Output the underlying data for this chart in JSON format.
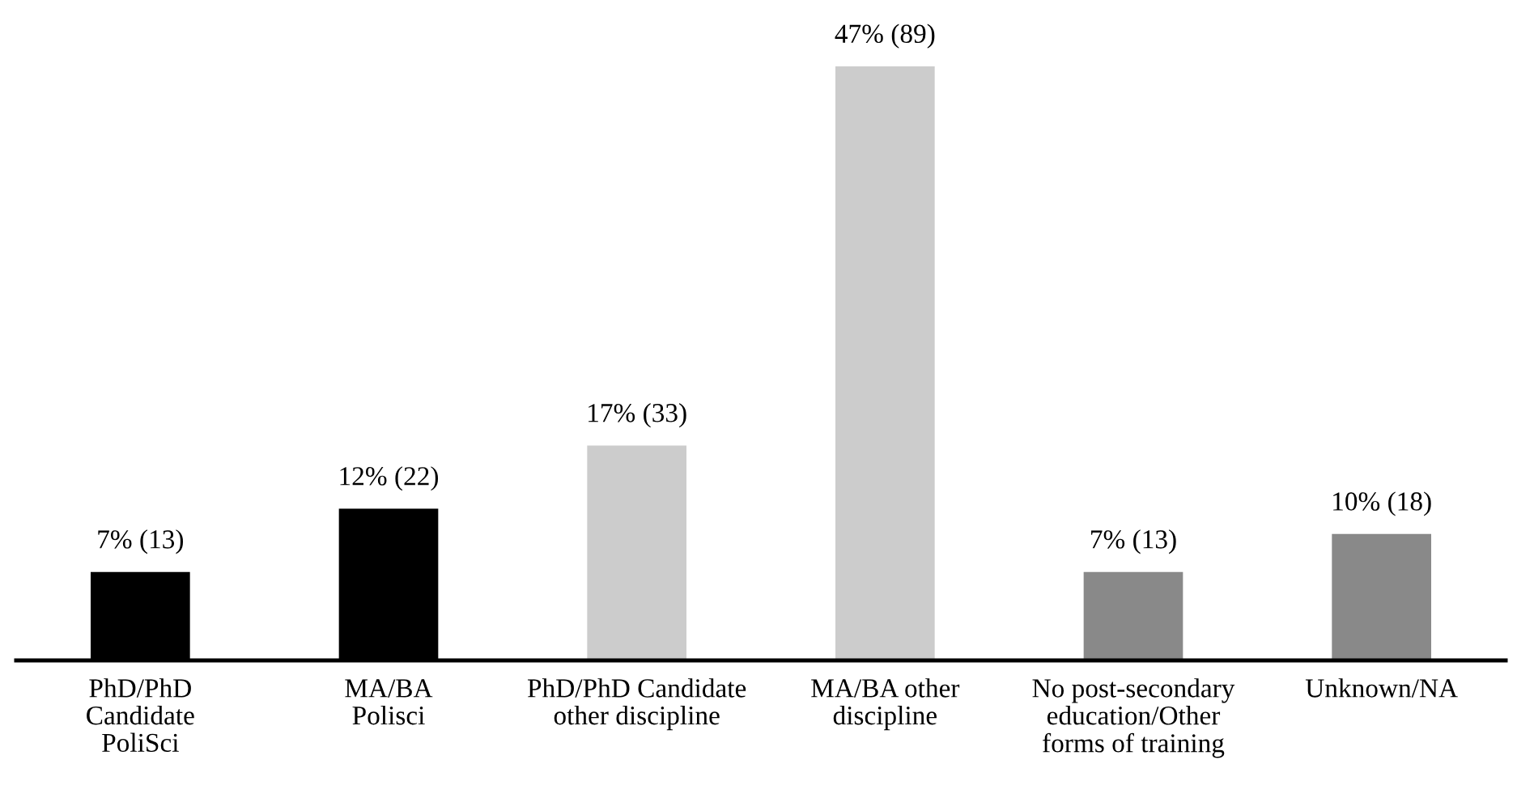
{
  "chart_data": {
    "type": "bar",
    "categories": [
      "PhD/PhD\nCandidate\nPoliSci",
      "MA/BA\nPolisci",
      "PhD/PhD Candidate\nother discipline",
      "MA/BA other\ndiscipline",
      "No post-secondary\neducation/Other\nforms of training",
      "Unknown/NA"
    ],
    "values": [
      7,
      12,
      17,
      47,
      7,
      10
    ],
    "value_labels": [
      "7% (13)",
      "12% (22)",
      "17% (33)",
      "47% (89)",
      "7% (13)",
      "10% (18)"
    ],
    "colors": [
      "#000000",
      "#000000",
      "#cccccc",
      "#cccccc",
      "#898989",
      "#898989"
    ],
    "grid": false,
    "legend": false
  }
}
